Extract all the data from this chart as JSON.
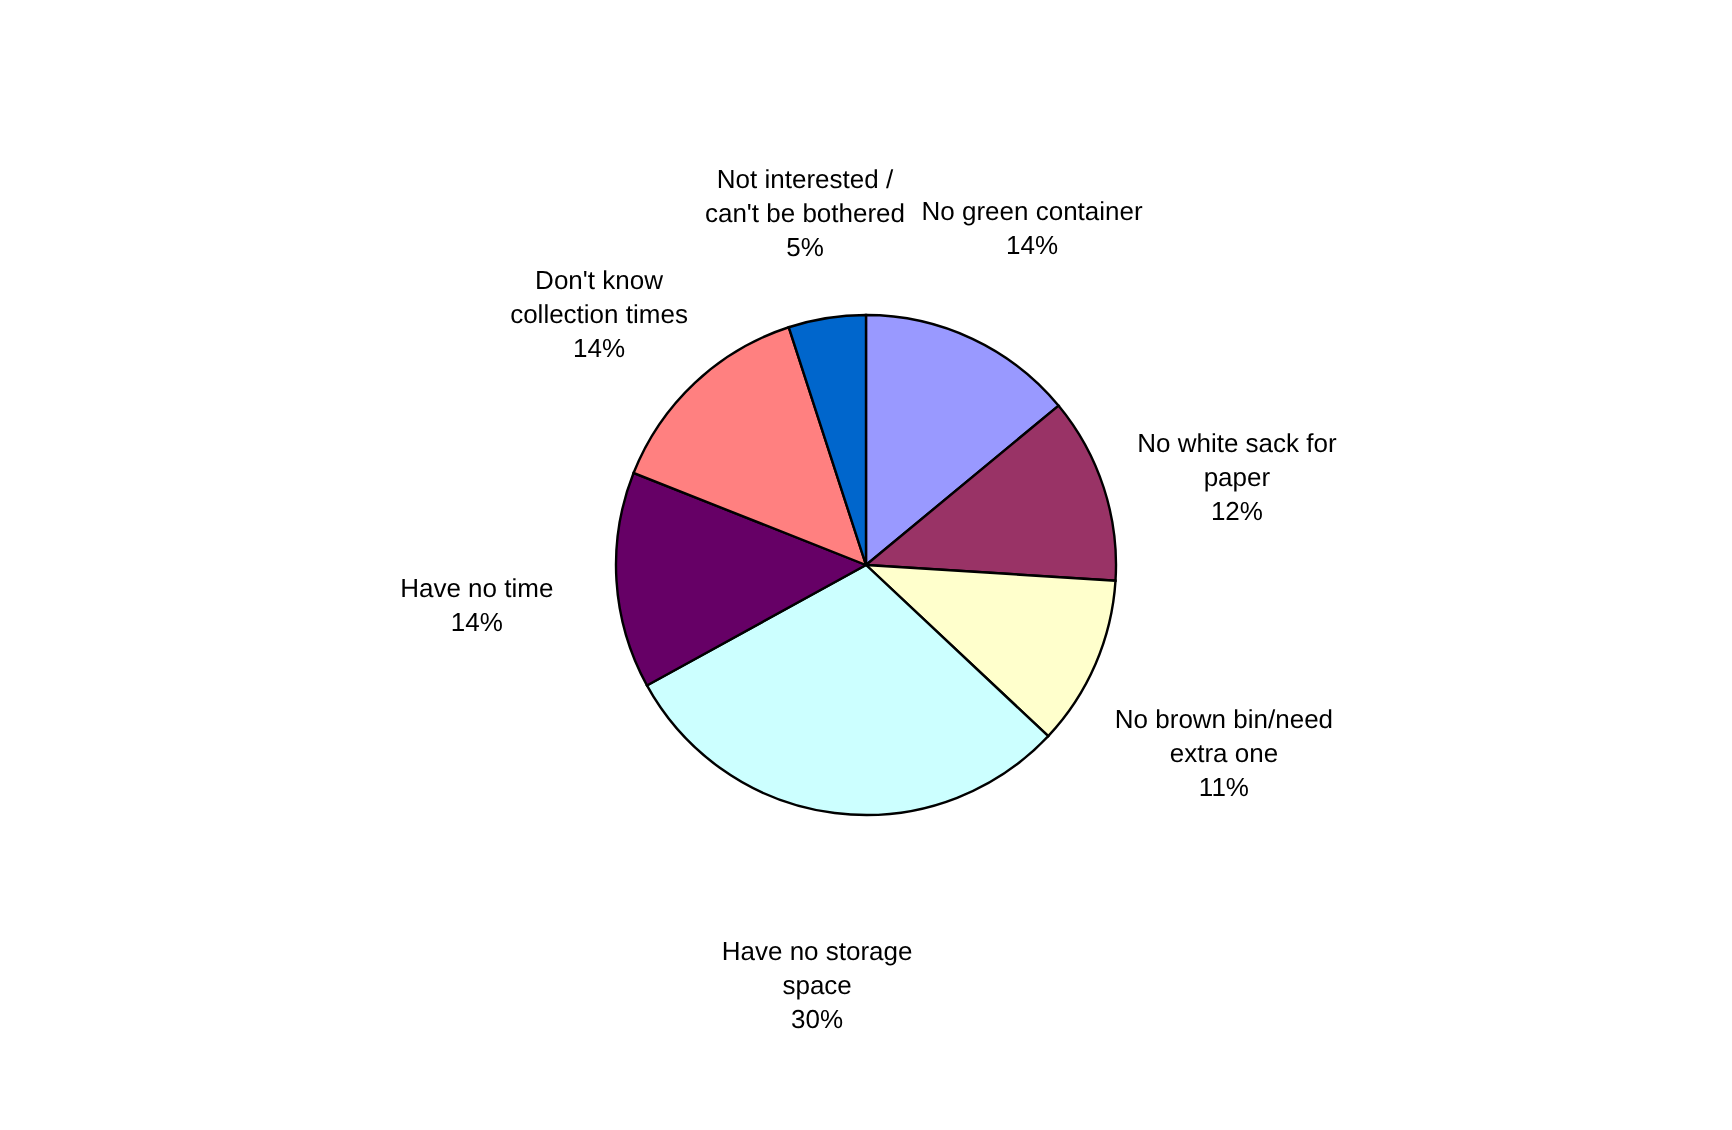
{
  "chart_data": {
    "type": "pie",
    "categories": [
      "No green container",
      "No white sack for paper",
      "No brown bin/need extra one",
      "Have no storage space",
      "Have no time",
      "Don't know collection times",
      "Not interested / can't be bothered"
    ],
    "values": [
      14,
      12,
      11,
      30,
      14,
      14,
      5
    ],
    "value_labels": [
      "14%",
      "12%",
      "11%",
      "30%",
      "14%",
      "14%",
      "5%"
    ],
    "colors": [
      "#9999ff",
      "#993366",
      "#ffffcc",
      "#ccffff",
      "#660066",
      "#ff8080",
      "#0066cc"
    ],
    "legend": false
  }
}
